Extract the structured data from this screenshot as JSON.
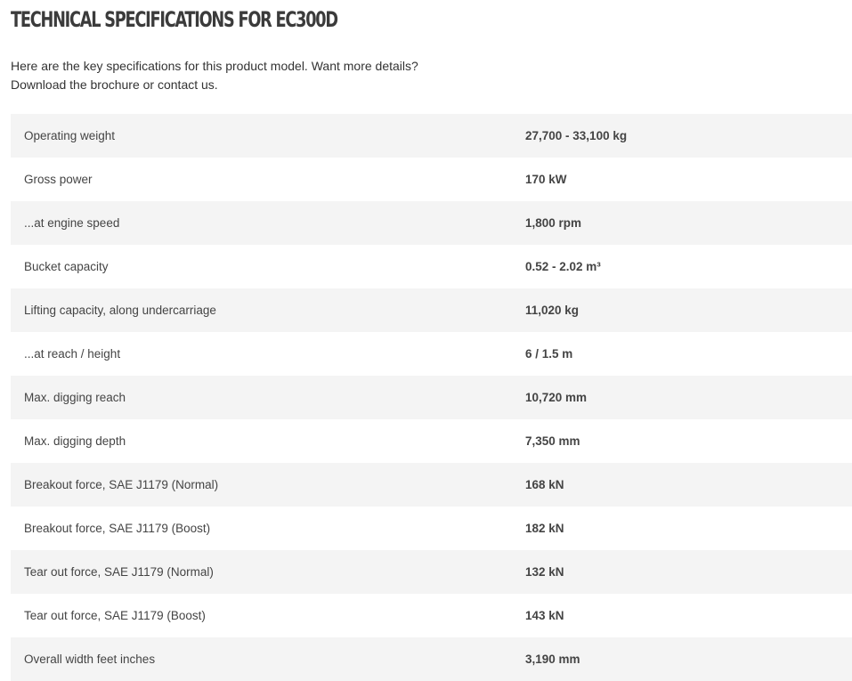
{
  "header": {
    "title": "TECHNICAL SPECIFICATIONS FOR EC300D",
    "intro": [
      "Here are the key specifications for this product model. Want more details?",
      "Download the brochure or contact us."
    ]
  },
  "table": {
    "rows": [
      [
        "Operating weight",
        "27,700 - 33,100 kg"
      ],
      [
        "Gross power",
        "170 kW"
      ],
      [
        "...at engine speed",
        "1,800 rpm"
      ],
      [
        "Bucket capacity",
        "0.52 - 2.02 m³"
      ],
      [
        "Lifting capacity, along undercarriage",
        "11,020 kg"
      ],
      [
        "...at reach / height",
        "6 / 1.5 m"
      ],
      [
        "Max. digging reach",
        "10,720 mm"
      ],
      [
        "Max. digging depth",
        "7,350 mm"
      ],
      [
        "Breakout force, SAE J1179 (Normal)",
        "168 kN"
      ],
      [
        "Breakout force, SAE J1179 (Boost)",
        "182 kN"
      ],
      [
        "Tear out force, SAE J1179 (Normal)",
        "132 kN"
      ],
      [
        "Tear out force, SAE J1179 (Boost)",
        "143 kN"
      ],
      [
        "Overall width feet inches",
        "3,190 mm"
      ]
    ]
  }
}
